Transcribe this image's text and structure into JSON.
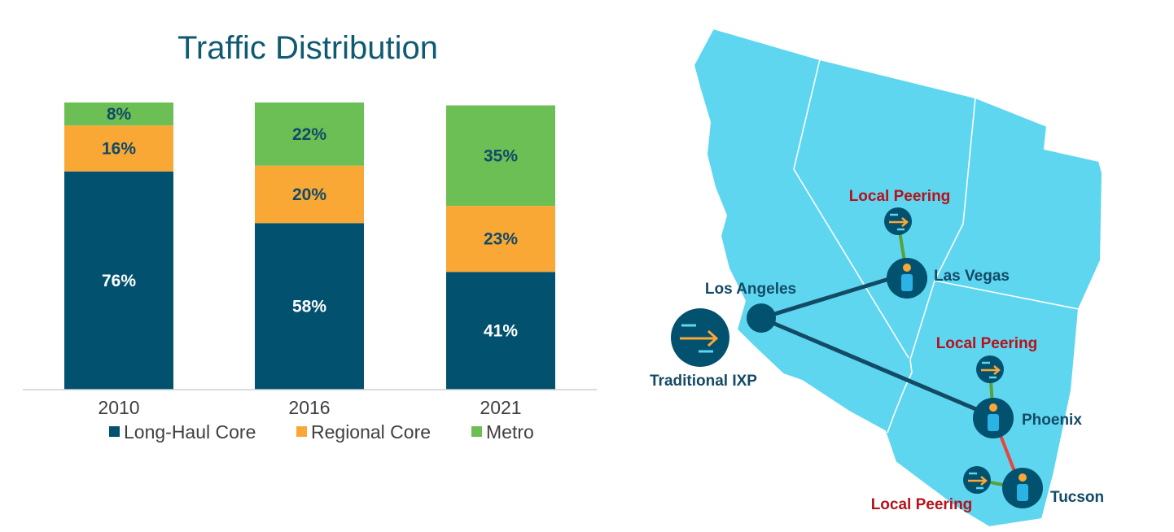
{
  "chart_data": {
    "type": "bar",
    "stacked": true,
    "title": "Traffic Distribution",
    "categories": [
      "2010",
      "2016",
      "2021"
    ],
    "ylim": [
      0,
      100
    ],
    "series": [
      {
        "name": "Long-Haul Core",
        "color": "#02516f",
        "values": [
          76,
          58,
          41
        ],
        "labels": [
          "76%",
          "58%",
          "41%"
        ],
        "label_color": "#ffffff"
      },
      {
        "name": "Regional Core",
        "color": "#f9a836",
        "values": [
          16,
          20,
          23
        ],
        "labels": [
          "16%",
          "20%",
          "23%"
        ],
        "label_color": "#134a66"
      },
      {
        "name": "Metro",
        "color": "#6cbf55",
        "values": [
          8,
          22,
          35
        ],
        "labels": [
          "8%",
          "22%",
          "35%"
        ],
        "label_color": "#134a66"
      }
    ],
    "legend_position": "bottom",
    "grid": false
  },
  "map": {
    "region_color": "#5ed6f0",
    "node_color": "#02516f",
    "accent_icon_color": "#f9a836",
    "cities": {
      "los_angeles": "Los Angeles",
      "las_vegas": "Las Vegas",
      "phoenix": "Phoenix",
      "tucson": "Tucson"
    },
    "traditional_ixp": "Traditional IXP",
    "local_peering": [
      "Local Peering",
      "Local Peering",
      "Local Peering"
    ],
    "links": {
      "core": "#134a66",
      "peering": "#5aa03c",
      "regional": "#e8453c"
    },
    "icons": [
      "arrow-right-icon",
      "person-icon"
    ]
  }
}
